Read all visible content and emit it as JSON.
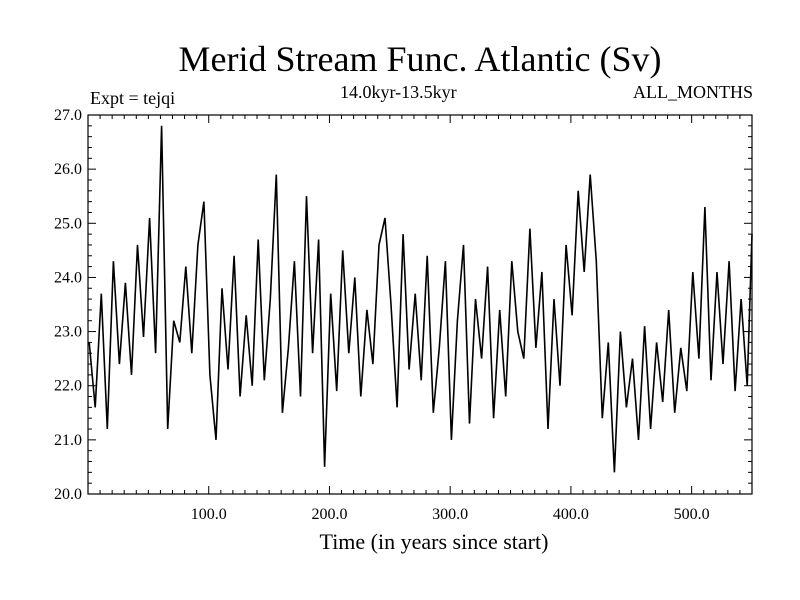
{
  "header": {
    "title": "Merid Stream Func. Atlantic (Sv)",
    "subtitle": "14.0kyr-13.5kyr",
    "expt_label": "Expt = tejqi",
    "months_label": "ALL_MONTHS"
  },
  "chart_data": {
    "type": "line",
    "title": "Merid Stream Func. Atlantic (Sv)",
    "subtitle": "14.0kyr-13.5kyr",
    "xlabel": "Time (in years since start)",
    "ylabel": "",
    "xlim": [
      0,
      550
    ],
    "ylim": [
      20.0,
      27.0
    ],
    "x_ticks": [
      100,
      200,
      300,
      400,
      500
    ],
    "x_tick_labels": [
      "100.0",
      "200.0",
      "300.0",
      "400.0",
      "500.0"
    ],
    "y_ticks": [
      20,
      21,
      22,
      23,
      24,
      25,
      26,
      27
    ],
    "y_tick_labels": [
      "20.0",
      "21.0",
      "22.0",
      "23.0",
      "24.0",
      "25.0",
      "26.0",
      "27.0"
    ],
    "grid": false,
    "series": [
      {
        "name": "tejqi",
        "x_start": 1,
        "x_step": 5,
        "values": [
          22.8,
          21.6,
          23.7,
          21.2,
          24.3,
          22.4,
          23.9,
          22.2,
          24.6,
          22.9,
          25.1,
          22.6,
          26.8,
          21.2,
          23.2,
          22.8,
          24.2,
          22.6,
          24.6,
          25.4,
          22.2,
          21.0,
          23.8,
          22.3,
          24.4,
          21.8,
          23.3,
          22.0,
          24.7,
          22.1,
          23.6,
          25.9,
          21.5,
          22.7,
          24.3,
          21.8,
          25.5,
          22.6,
          24.7,
          20.5,
          23.7,
          21.9,
          24.5,
          22.6,
          24.0,
          21.8,
          23.4,
          22.4,
          24.6,
          25.1,
          23.5,
          21.6,
          24.8,
          22.3,
          23.7,
          22.1,
          24.4,
          21.5,
          22.7,
          24.3,
          21.0,
          23.2,
          24.6,
          21.3,
          23.6,
          22.5,
          24.2,
          21.4,
          23.4,
          21.8,
          24.3,
          23.0,
          22.5,
          24.9,
          22.7,
          24.1,
          21.2,
          23.6,
          22.0,
          24.6,
          23.3,
          25.6,
          24.1,
          25.9,
          24.3,
          21.4,
          22.8,
          20.4,
          23.0,
          21.6,
          22.5,
          21.0,
          23.1,
          21.2,
          22.8,
          21.7,
          23.4,
          21.5,
          22.7,
          21.9,
          24.1,
          22.5,
          25.3,
          22.1,
          24.1,
          22.4,
          24.3,
          21.9,
          23.6,
          22.0,
          24.8
        ],
        "color": "#000000"
      }
    ]
  }
}
